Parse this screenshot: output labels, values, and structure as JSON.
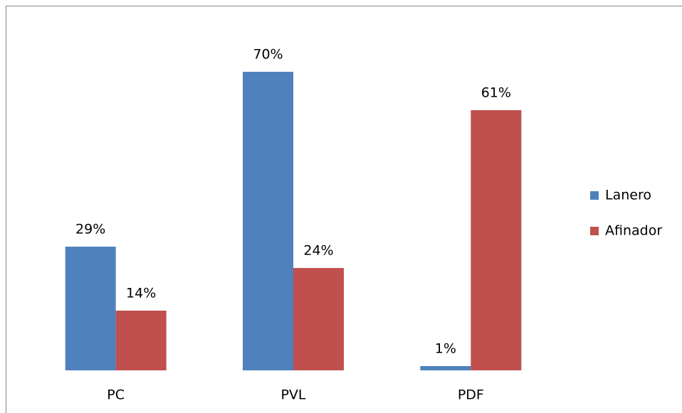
{
  "chart_data": {
    "type": "bar",
    "categories": [
      "PC",
      "PVL",
      "PDF"
    ],
    "series": [
      {
        "name": "Lanero",
        "color": "#4f81bd",
        "values": [
          29,
          70,
          1
        ],
        "value_labels": [
          "29%",
          "70%",
          "1%"
        ]
      },
      {
        "name": "Afinador",
        "color": "#c0504d",
        "values": [
          14,
          24,
          61
        ],
        "value_labels": [
          "14%",
          "24%",
          "61%"
        ]
      }
    ],
    "legend": "right"
  }
}
